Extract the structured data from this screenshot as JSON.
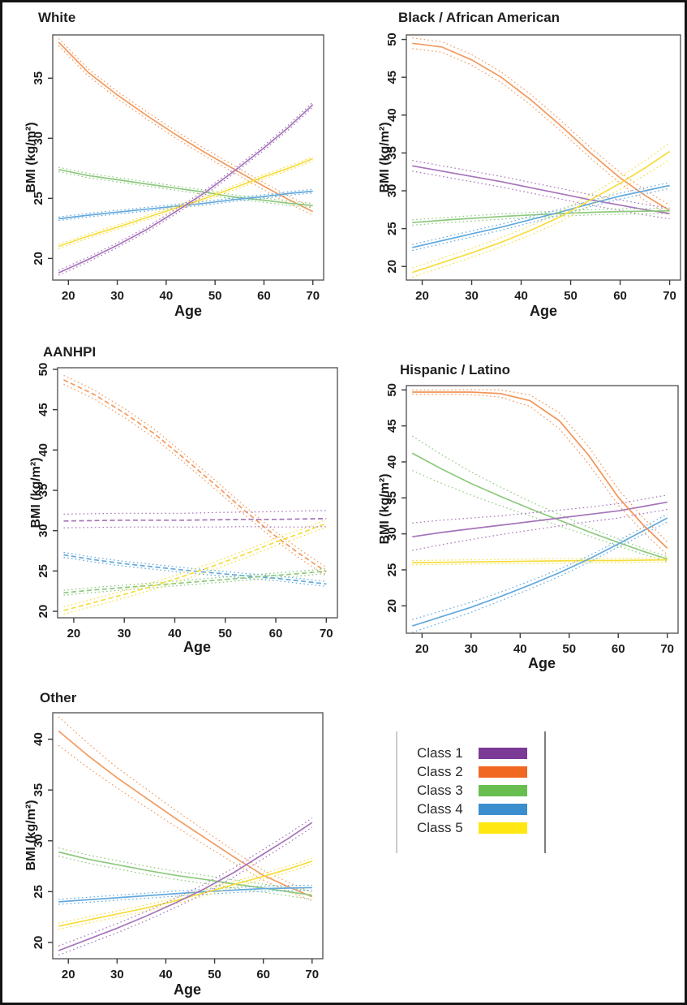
{
  "legend": {
    "items": [
      {
        "label": "Class 1",
        "color": "#7c3a97"
      },
      {
        "label": "Class 2",
        "color": "#f16822"
      },
      {
        "label": "Class 3",
        "color": "#68bf50"
      },
      {
        "label": "Class 4",
        "color": "#3b8ece"
      },
      {
        "label": "Class 5",
        "color": "#ffe712"
      }
    ]
  },
  "chart_data": [
    {
      "type": "line",
      "title": "White",
      "xlabel": "Age",
      "ylabel": "BMI (kg/m²)",
      "xlim": [
        16.8,
        72.2
      ],
      "ylim": [
        18.2,
        38.6
      ],
      "xticks": [
        20,
        30,
        40,
        50,
        60,
        70
      ],
      "yticks": [
        20,
        25,
        30,
        35
      ],
      "x": [
        18,
        24,
        30,
        36,
        42,
        48,
        54,
        60,
        65,
        70
      ],
      "series": [
        {
          "name": "Class 2",
          "color": "#f39a5e",
          "values": [
            38.0,
            35.5,
            33.6,
            31.9,
            30.3,
            28.8,
            27.4,
            26.0,
            24.9,
            23.9
          ],
          "band": 0.3
        },
        {
          "name": "Class 3",
          "color": "#8cc97d",
          "values": [
            27.4,
            26.9,
            26.55,
            26.2,
            25.85,
            25.5,
            25.1,
            24.85,
            24.6,
            24.4
          ],
          "band": 0.18
        },
        {
          "name": "Class 4",
          "color": "#62a9dd",
          "values": [
            23.3,
            23.6,
            23.85,
            24.1,
            24.35,
            24.6,
            24.9,
            25.15,
            25.4,
            25.6
          ],
          "band": 0.15
        },
        {
          "name": "Class 5",
          "color": "#f6dd3c",
          "values": [
            21.0,
            21.85,
            22.6,
            23.4,
            24.2,
            25.0,
            25.9,
            26.8,
            27.5,
            28.3
          ],
          "band": 0.18
        },
        {
          "name": "Class 1",
          "color": "#a674ba",
          "values": [
            18.8,
            19.9,
            21.1,
            22.4,
            23.9,
            25.5,
            27.3,
            29.2,
            30.9,
            32.8
          ],
          "band": 0.2
        }
      ]
    },
    {
      "type": "line",
      "title": "Black / African American",
      "xlabel": "Age",
      "ylabel": "BMI (kg/m²)",
      "xlim": [
        16.8,
        72.2
      ],
      "ylim": [
        18.2,
        50.6
      ],
      "xticks": [
        20,
        30,
        40,
        50,
        60,
        70
      ],
      "yticks": [
        20,
        25,
        30,
        35,
        40,
        45,
        50
      ],
      "x": [
        18,
        24,
        30,
        36,
        42,
        48,
        54,
        60,
        65,
        70
      ],
      "series": [
        {
          "name": "Class 2",
          "color": "#f39a5e",
          "values": [
            49.5,
            49.0,
            47.3,
            45.0,
            42.0,
            38.6,
            35.0,
            31.7,
            29.4,
            27.4
          ],
          "band": 0.7
        },
        {
          "name": "Class 1",
          "color": "#a674ba",
          "values": [
            33.3,
            32.6,
            31.9,
            31.2,
            30.4,
            29.6,
            28.8,
            28.1,
            27.5,
            27.0
          ],
          "band": 0.7
        },
        {
          "name": "Class 3",
          "color": "#8cc97d",
          "values": [
            25.8,
            26.1,
            26.35,
            26.6,
            26.8,
            27.0,
            27.15,
            27.25,
            27.3,
            27.35
          ],
          "band": 0.35
        },
        {
          "name": "Class 4",
          "color": "#62a9dd",
          "values": [
            22.5,
            23.4,
            24.3,
            25.2,
            26.2,
            27.2,
            28.3,
            29.3,
            30.0,
            30.7
          ],
          "band": 0.4
        },
        {
          "name": "Class 5",
          "color": "#f6dd3c",
          "values": [
            19.2,
            20.5,
            21.8,
            23.2,
            24.8,
            26.6,
            28.8,
            31.0,
            33.0,
            35.2
          ],
          "band": [
            0.6,
            0.6,
            0.6,
            0.6,
            0.6,
            0.65,
            0.7,
            0.8,
            0.95,
            1.1
          ]
        }
      ]
    },
    {
      "type": "line",
      "title": "AANHPI",
      "xlabel": "Age",
      "ylabel": "BMI (kg/m²)",
      "line_style": "dashed",
      "xlim": [
        16.8,
        72.2
      ],
      "ylim": [
        19.2,
        50.2
      ],
      "xticks": [
        20,
        30,
        40,
        50,
        60,
        70
      ],
      "yticks": [
        20,
        25,
        30,
        35,
        40,
        45,
        50
      ],
      "x": [
        18,
        24,
        30,
        36,
        42,
        48,
        54,
        60,
        65,
        70
      ],
      "series": [
        {
          "name": "Class 2",
          "color": "#f39a5e",
          "values": [
            48.7,
            46.9,
            44.6,
            42.0,
            38.9,
            35.7,
            32.4,
            29.3,
            27.0,
            24.9
          ],
          "band": 0.55
        },
        {
          "name": "Class 1",
          "color": "#a674ba",
          "values": [
            31.2,
            31.25,
            31.3,
            31.3,
            31.3,
            31.35,
            31.4,
            31.4,
            31.45,
            31.5
          ],
          "band": [
            0.85,
            0.85,
            0.85,
            0.85,
            0.85,
            0.9,
            0.9,
            0.95,
            1.0,
            1.0
          ]
        },
        {
          "name": "Class 4",
          "color": "#62a9dd",
          "values": [
            27.0,
            26.4,
            25.9,
            25.5,
            25.1,
            24.75,
            24.4,
            24.1,
            23.75,
            23.4
          ],
          "band": 0.3
        },
        {
          "name": "Class 3",
          "color": "#8cc97d",
          "values": [
            22.3,
            22.65,
            22.95,
            23.25,
            23.55,
            23.85,
            24.15,
            24.45,
            24.7,
            25.0
          ],
          "band": 0.3
        },
        {
          "name": "Class 5",
          "color": "#f6dd3c",
          "values": [
            20.1,
            21.1,
            22.1,
            23.2,
            24.4,
            25.7,
            27.1,
            28.6,
            29.7,
            30.9
          ],
          "band": 0.45
        }
      ]
    },
    {
      "type": "line",
      "title": "Hispanic / Latino",
      "xlabel": "Age",
      "ylabel": "BMI (kg/m²)",
      "xlim": [
        16.8,
        72.2
      ],
      "ylim": [
        16.2,
        50.6
      ],
      "xticks": [
        20,
        30,
        40,
        50,
        60,
        70
      ],
      "yticks": [
        20,
        25,
        30,
        35,
        40,
        45,
        50
      ],
      "x": [
        18,
        24,
        30,
        36,
        42,
        48,
        54,
        60,
        65,
        70
      ],
      "series": [
        {
          "name": "Class 3",
          "color": "#8cc97d",
          "values": [
            41.2,
            39.0,
            37.0,
            35.2,
            33.5,
            31.9,
            30.3,
            28.8,
            27.6,
            26.5
          ],
          "band": [
            2.4,
            2.0,
            1.6,
            1.3,
            1.0,
            0.8,
            0.6,
            0.5,
            0.4,
            0.35
          ]
        },
        {
          "name": "Class 1",
          "color": "#a674ba",
          "values": [
            29.6,
            30.2,
            30.7,
            31.2,
            31.7,
            32.2,
            32.7,
            33.2,
            33.8,
            34.4
          ],
          "band": [
            1.9,
            1.7,
            1.5,
            1.3,
            1.2,
            1.1,
            1.0,
            1.0,
            1.0,
            1.0
          ]
        },
        {
          "name": "Class 5",
          "color": "#f6dd3c",
          "values": [
            26.0,
            26.05,
            26.1,
            26.15,
            26.2,
            26.25,
            26.3,
            26.3,
            26.35,
            26.4
          ],
          "band": 0.3
        },
        {
          "name": "Class 4",
          "color": "#62a9dd",
          "values": [
            17.2,
            18.5,
            19.8,
            21.3,
            22.9,
            24.6,
            26.5,
            28.6,
            30.4,
            32.2
          ],
          "band": [
            0.9,
            0.8,
            0.7,
            0.6,
            0.55,
            0.5,
            0.45,
            0.45,
            0.5,
            0.55
          ]
        },
        {
          "name": "Class 2",
          "color": "#f39355",
          "values": [
            49.7,
            49.7,
            49.7,
            49.5,
            48.5,
            45.7,
            40.9,
            35.1,
            31.3,
            28.0
          ],
          "band": [
            0.3,
            0.3,
            0.35,
            0.5,
            0.8,
            1.1,
            1.2,
            1.1,
            1.0,
            0.9
          ]
        }
      ]
    },
    {
      "type": "line",
      "title": "Other",
      "xlabel": "Age",
      "ylabel": "BMI (kg/m²)",
      "xlim": [
        16.8,
        72.2
      ],
      "ylim": [
        18.4,
        42.6
      ],
      "xticks": [
        20,
        30,
        40,
        50,
        60,
        70
      ],
      "yticks": [
        20,
        25,
        30,
        35,
        40
      ],
      "x": [
        18,
        24,
        30,
        36,
        42,
        48,
        54,
        60,
        65,
        70
      ],
      "series": [
        {
          "name": "Class 2",
          "color": "#f39a5e",
          "values": [
            40.8,
            38.4,
            36.2,
            34.2,
            32.2,
            30.3,
            28.4,
            26.6,
            25.5,
            24.5
          ],
          "band": [
            1.4,
            1.2,
            1.0,
            0.9,
            0.8,
            0.7,
            0.6,
            0.5,
            0.45,
            0.4
          ]
        },
        {
          "name": "Class 3",
          "color": "#8cc97d",
          "values": [
            28.9,
            28.2,
            27.65,
            27.1,
            26.6,
            26.2,
            25.75,
            25.35,
            25.0,
            24.65
          ],
          "band": 0.4
        },
        {
          "name": "Class 4",
          "color": "#62a9dd",
          "values": [
            24.0,
            24.2,
            24.4,
            24.6,
            24.8,
            25.0,
            25.15,
            25.3,
            25.35,
            25.4
          ],
          "band": 0.25
        },
        {
          "name": "Class 5",
          "color": "#f6dd3c",
          "values": [
            21.6,
            22.2,
            22.8,
            23.4,
            24.1,
            24.9,
            25.7,
            26.5,
            27.2,
            28.0
          ],
          "band": 0.3
        },
        {
          "name": "Class 1",
          "color": "#a674ba",
          "values": [
            19.2,
            20.3,
            21.4,
            22.6,
            23.9,
            25.3,
            26.9,
            28.7,
            30.2,
            31.8
          ],
          "band": 0.45
        }
      ]
    }
  ]
}
